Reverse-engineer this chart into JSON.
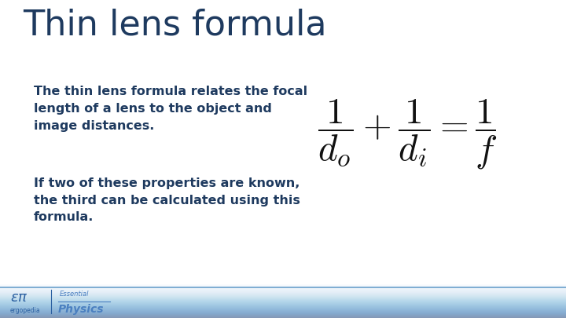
{
  "title": "Thin lens formula",
  "title_color": "#1e3a5f",
  "title_fontsize": 32,
  "bg_color": "#ffffff",
  "text1": "The thin lens formula relates the focal\nlength of a lens to the object and\nimage distances.",
  "text2": "If two of these properties are known,\nthe third can be calculated using this\nformula.",
  "text_color": "#1e3a5f",
  "text_fontsize": 11.5,
  "formula_color": "#111111",
  "formula_fontsize": 34,
  "footer_line_color": "#6aa0cc",
  "ergopedia_color": "#2a5fa0",
  "physics_color": "#4a7fc0"
}
